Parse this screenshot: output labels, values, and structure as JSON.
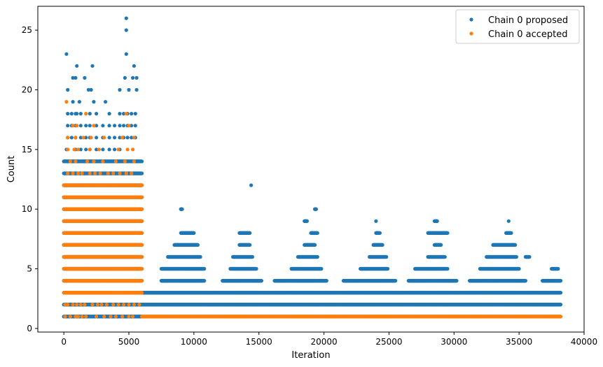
{
  "chart_data": {
    "type": "scatter",
    "title": "",
    "xlabel": "Iteration",
    "ylabel": "Count",
    "xlim": [
      -2000,
      40000
    ],
    "ylim": [
      -0.3,
      27
    ],
    "xticks": [
      0,
      5000,
      10000,
      15000,
      20000,
      25000,
      30000,
      35000,
      40000
    ],
    "yticks": [
      0,
      5,
      10,
      15,
      20,
      25
    ],
    "grid": false,
    "legend_position": "top-right",
    "series": [
      {
        "name": "Chain 0 proposed",
        "color": "#1f77b4",
        "bands": [
          {
            "y": 1,
            "segments": [
              [
                0,
                6000
              ]
            ]
          },
          {
            "y": 2,
            "segments": [
              [
                0,
                6000
              ],
              [
                6000,
                38200
              ]
            ]
          },
          {
            "y": 3,
            "segments": [
              [
                0,
                6000
              ],
              [
                6000,
                38200
              ]
            ]
          },
          {
            "y": 4,
            "segments": [
              [
                0,
                6000
              ],
              [
                7500,
                10800
              ],
              [
                12200,
                15200
              ],
              [
                16200,
                20200
              ],
              [
                21500,
                25500
              ],
              [
                26500,
                30200
              ],
              [
                31200,
                35500
              ],
              [
                36800,
                38200
              ]
            ]
          },
          {
            "y": 5,
            "segments": [
              [
                0,
                6000
              ],
              [
                7500,
                10800
              ],
              [
                12800,
                14800
              ],
              [
                17500,
                19800
              ],
              [
                22800,
                24900
              ],
              [
                27000,
                29500
              ],
              [
                32000,
                35000
              ],
              [
                37500,
                38000
              ]
            ]
          },
          {
            "y": 6,
            "segments": [
              [
                0,
                6000
              ],
              [
                8000,
                10500
              ],
              [
                13000,
                14500
              ],
              [
                18000,
                19500
              ],
              [
                23500,
                24800
              ],
              [
                28000,
                29300
              ],
              [
                32500,
                34800
              ],
              [
                35500,
                35800
              ]
            ]
          },
          {
            "y": 7,
            "segments": [
              [
                0,
                6000
              ],
              [
                8500,
                10300
              ],
              [
                13500,
                14300
              ],
              [
                18500,
                19300
              ],
              [
                23800,
                24500
              ],
              [
                28500,
                29000
              ],
              [
                33000,
                34700
              ]
            ]
          },
          {
            "y": 8,
            "segments": [
              [
                0,
                6000
              ],
              [
                9000,
                10000
              ],
              [
                13500,
                14300
              ],
              [
                19000,
                19500
              ],
              [
                24000,
                24300
              ],
              [
                28000,
                29500
              ],
              [
                34000,
                34400
              ]
            ]
          },
          {
            "y": 9,
            "segments": [
              [
                0,
                6000
              ],
              [
                18500,
                18700
              ],
              [
                28500,
                28700
              ]
            ]
          },
          {
            "y": 10,
            "segments": [
              [
                0,
                6000
              ],
              [
                9000,
                9100
              ],
              [
                19300,
                19400
              ]
            ]
          },
          {
            "y": 11,
            "segments": [
              [
                0,
                6000
              ]
            ]
          },
          {
            "y": 12,
            "segments": [
              [
                0,
                6000
              ]
            ]
          },
          {
            "y": 13,
            "segments": [
              [
                0,
                6000
              ]
            ]
          },
          {
            "y": 14,
            "segments": [
              [
                0,
                6000
              ]
            ]
          }
        ],
        "points": [
          [
            14400,
            12
          ],
          [
            24000,
            9
          ],
          [
            28700,
            9
          ],
          [
            34200,
            9
          ],
          [
            9000,
            10
          ],
          [
            19300,
            10
          ],
          [
            200,
            23
          ],
          [
            700,
            21
          ],
          [
            1000,
            22
          ],
          [
            2200,
            22
          ],
          [
            4800,
            23
          ],
          [
            4800,
            25
          ],
          [
            4800,
            26
          ],
          [
            5400,
            22
          ],
          [
            5600,
            21
          ],
          [
            300,
            20
          ],
          [
            700,
            19
          ],
          [
            900,
            21
          ],
          [
            1200,
            19
          ],
          [
            1600,
            21
          ],
          [
            1900,
            20
          ],
          [
            2300,
            19
          ],
          [
            3200,
            19
          ],
          [
            4300,
            20
          ],
          [
            4700,
            21
          ],
          [
            5000,
            20
          ],
          [
            5300,
            21
          ],
          [
            5600,
            20
          ],
          [
            2100,
            20
          ],
          [
            1000,
            18
          ],
          [
            200,
            15
          ],
          [
            300,
            16
          ],
          [
            300,
            17
          ],
          [
            300,
            18
          ],
          [
            600,
            16
          ],
          [
            600,
            17
          ],
          [
            600,
            18
          ],
          [
            900,
            15
          ],
          [
            900,
            16
          ],
          [
            900,
            17
          ],
          [
            900,
            18
          ],
          [
            1300,
            15
          ],
          [
            1300,
            16
          ],
          [
            1300,
            17
          ],
          [
            1300,
            18
          ],
          [
            1700,
            15
          ],
          [
            1700,
            16
          ],
          [
            1700,
            17
          ],
          [
            2000,
            15
          ],
          [
            2000,
            16
          ],
          [
            2000,
            17
          ],
          [
            2000,
            18
          ],
          [
            2500,
            15
          ],
          [
            2500,
            16
          ],
          [
            2500,
            17
          ],
          [
            2500,
            18
          ],
          [
            3000,
            15
          ],
          [
            3000,
            16
          ],
          [
            3000,
            17
          ],
          [
            3500,
            15
          ],
          [
            3500,
            16
          ],
          [
            3500,
            17
          ],
          [
            3500,
            18
          ],
          [
            3900,
            15
          ],
          [
            3900,
            16
          ],
          [
            3900,
            17
          ],
          [
            4300,
            15
          ],
          [
            4300,
            16
          ],
          [
            4300,
            17
          ],
          [
            4300,
            18
          ],
          [
            4600,
            16
          ],
          [
            4600,
            17
          ],
          [
            4600,
            18
          ],
          [
            4900,
            16
          ],
          [
            4900,
            17
          ],
          [
            4900,
            18
          ],
          [
            5200,
            16
          ],
          [
            5200,
            17
          ],
          [
            5200,
            18
          ],
          [
            5500,
            16
          ],
          [
            5500,
            17
          ],
          [
            5500,
            18
          ]
        ]
      },
      {
        "name": "Chain 0 accepted",
        "color": "#ff7f0e",
        "bands": [
          {
            "y": 1,
            "segments": [
              [
                6000,
                38200
              ]
            ]
          },
          {
            "y": 3,
            "segments": [
              [
                0,
                6000
              ]
            ]
          },
          {
            "y": 4,
            "segments": [
              [
                0,
                6000
              ]
            ]
          },
          {
            "y": 5,
            "segments": [
              [
                0,
                6000
              ]
            ]
          },
          {
            "y": 6,
            "segments": [
              [
                0,
                6000
              ]
            ]
          },
          {
            "y": 7,
            "segments": [
              [
                0,
                6000
              ]
            ]
          },
          {
            "y": 8,
            "segments": [
              [
                0,
                6000
              ]
            ]
          },
          {
            "y": 9,
            "segments": [
              [
                0,
                6000
              ]
            ]
          },
          {
            "y": 10,
            "segments": [
              [
                0,
                6000
              ]
            ]
          },
          {
            "y": 11,
            "segments": [
              [
                0,
                6000
              ]
            ]
          },
          {
            "y": 12,
            "segments": [
              [
                0,
                6000
              ]
            ]
          }
        ],
        "points": [
          [
            100,
            1
          ],
          [
            500,
            1
          ],
          [
            900,
            1
          ],
          [
            1100,
            1
          ],
          [
            1400,
            1
          ],
          [
            1700,
            1
          ],
          [
            2500,
            1
          ],
          [
            3100,
            1
          ],
          [
            3600,
            1
          ],
          [
            4000,
            1
          ],
          [
            4500,
            1
          ],
          [
            5000,
            1
          ],
          [
            5300,
            1
          ],
          [
            100,
            2
          ],
          [
            300,
            2
          ],
          [
            700,
            2
          ],
          [
            1000,
            2
          ],
          [
            1300,
            2
          ],
          [
            1600,
            2
          ],
          [
            2200,
            2
          ],
          [
            2600,
            2
          ],
          [
            2900,
            2
          ],
          [
            3300,
            2
          ],
          [
            3800,
            2
          ],
          [
            4200,
            2
          ],
          [
            4600,
            2
          ],
          [
            5000,
            2
          ],
          [
            5400,
            2
          ],
          [
            5800,
            2
          ],
          [
            300,
            13
          ],
          [
            700,
            13
          ],
          [
            1100,
            13
          ],
          [
            1400,
            13
          ],
          [
            2000,
            13
          ],
          [
            2400,
            13
          ],
          [
            2800,
            13
          ],
          [
            3400,
            13
          ],
          [
            3800,
            13
          ],
          [
            4300,
            13
          ],
          [
            4800,
            13
          ],
          [
            5200,
            13
          ],
          [
            500,
            14
          ],
          [
            900,
            14
          ],
          [
            1800,
            14
          ],
          [
            2300,
            14
          ],
          [
            3000,
            14
          ],
          [
            4000,
            14
          ],
          [
            4700,
            14
          ],
          [
            5400,
            14
          ],
          [
            300,
            15
          ],
          [
            800,
            15
          ],
          [
            1100,
            15
          ],
          [
            2000,
            15
          ],
          [
            2700,
            15
          ],
          [
            4200,
            15
          ],
          [
            4900,
            15
          ],
          [
            5300,
            15
          ],
          [
            300,
            16
          ],
          [
            900,
            16
          ],
          [
            1500,
            16
          ],
          [
            2100,
            16
          ],
          [
            3100,
            16
          ],
          [
            4500,
            16
          ],
          [
            5400,
            16
          ],
          [
            700,
            17
          ],
          [
            1000,
            17
          ],
          [
            2300,
            17
          ],
          [
            5000,
            17
          ],
          [
            1700,
            18
          ],
          [
            4800,
            18
          ],
          [
            200,
            19
          ]
        ]
      }
    ]
  }
}
